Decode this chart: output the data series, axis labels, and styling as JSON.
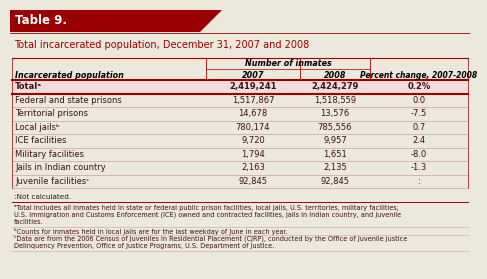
{
  "title_box": "Table 9.",
  "subtitle": "Total incarcerated population, December 31, 2007 and 2008",
  "col_header_main": "Number of inmates",
  "col_headers": [
    "Incarcerated population",
    "2007",
    "2008",
    "Percent change, 2007-2008"
  ],
  "rows": [
    [
      "Totalᵃ",
      "2,419,241",
      "2,424,279",
      "0.2%"
    ],
    [
      "Federal and state prisons",
      "1,517,867",
      "1,518,559",
      "0.0"
    ],
    [
      "Territorial prisons",
      "14,678",
      "13,576",
      "-7.5"
    ],
    [
      "Local jailsᵇ",
      "780,174",
      "785,556",
      "0.7"
    ],
    [
      "ICE facilities",
      "9,720",
      "9,957",
      "2.4"
    ],
    [
      "Military facilities",
      "1,794",
      "1,651",
      "-8.0"
    ],
    [
      "Jails in Indian country",
      "2,163",
      "2,135",
      "-1.3"
    ],
    [
      "Juvenile facilitiesᶜ",
      "92,845",
      "92,845",
      ":"
    ]
  ],
  "footnote_nc": ":Not calculated.",
  "footnotes": [
    "ᵃTotal includes all inmates held in state or federal public prison facilities, local jails, U.S. territories, military facilities,\nU.S. Immigration and Customs Enforcement (ICE) owned and contracted facilities, jails in Indian country, and juvenile\nfacilities.",
    "ᵇCounts for inmates held in local jails are for the last weekday of June in each year.",
    "ᶜData are from the 2006 Census of Juveniles in Residential Placement (CJRP), conducted by the Office of Juvenile Justice\nDelinquency Prevention, Office of Justice Programs, U.S. Department of Justice."
  ],
  "header_bg": "#9B0000",
  "header_text_color": "#FFFFFF",
  "subtitle_color": "#9B0000",
  "total_row_bg": "#F2DCDC",
  "table_text_color": "#3A1010",
  "border_color": "#9B0000",
  "thin_line_color": "#C8A0A0",
  "bg_color": "#EDE8DC"
}
